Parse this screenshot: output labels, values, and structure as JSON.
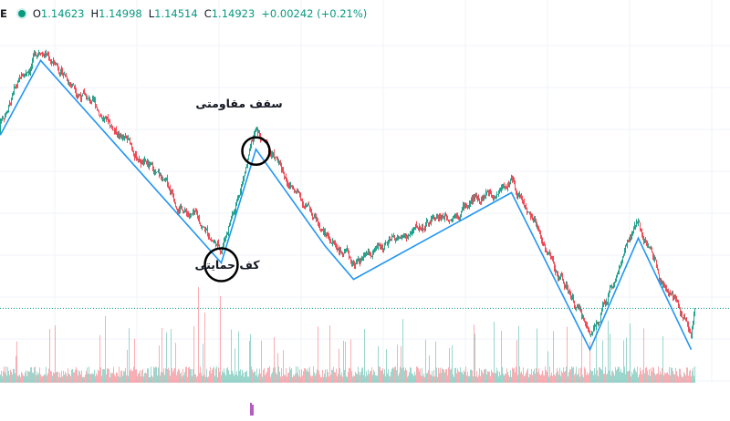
{
  "header": {
    "symbol_fragment": "E",
    "open_label": "O",
    "open": "1.14623",
    "high_label": "H",
    "high": "1.14998",
    "low_label": "L",
    "low": "1.14514",
    "close_label": "C",
    "close": "1.14923",
    "change": "+0.00242 (+0.21%)"
  },
  "colors": {
    "up": "#089981",
    "down": "#f23645",
    "zigzag": "#2196f3",
    "grid": "#f0f3fa",
    "price_line": "#089981",
    "annotation_circle": "#000000"
  },
  "annotations": {
    "resistance_label": "سقف مقاومتی",
    "support_label": "کف حمایتی"
  },
  "chart_data": {
    "type": "candlestick",
    "title": "",
    "xlabel": "",
    "ylabel": "",
    "grid": true,
    "zigzag_points": [
      {
        "i": 0,
        "y": 1.13
      },
      {
        "i": 44,
        "y": 1.148
      },
      {
        "i": 242,
        "y": 1.099
      },
      {
        "i": 280,
        "y": 1.1265
      },
      {
        "i": 356,
        "y": 1.103
      },
      {
        "i": 387,
        "y": 1.095
      },
      {
        "i": 560,
        "y": 1.116
      },
      {
        "i": 646,
        "y": 1.078
      },
      {
        "i": 699,
        "y": 1.105
      },
      {
        "i": 757,
        "y": 1.078
      }
    ],
    "last_close_marker": 1.088,
    "price_range": [
      1.07,
      1.156
    ],
    "bar_count": 762
  }
}
